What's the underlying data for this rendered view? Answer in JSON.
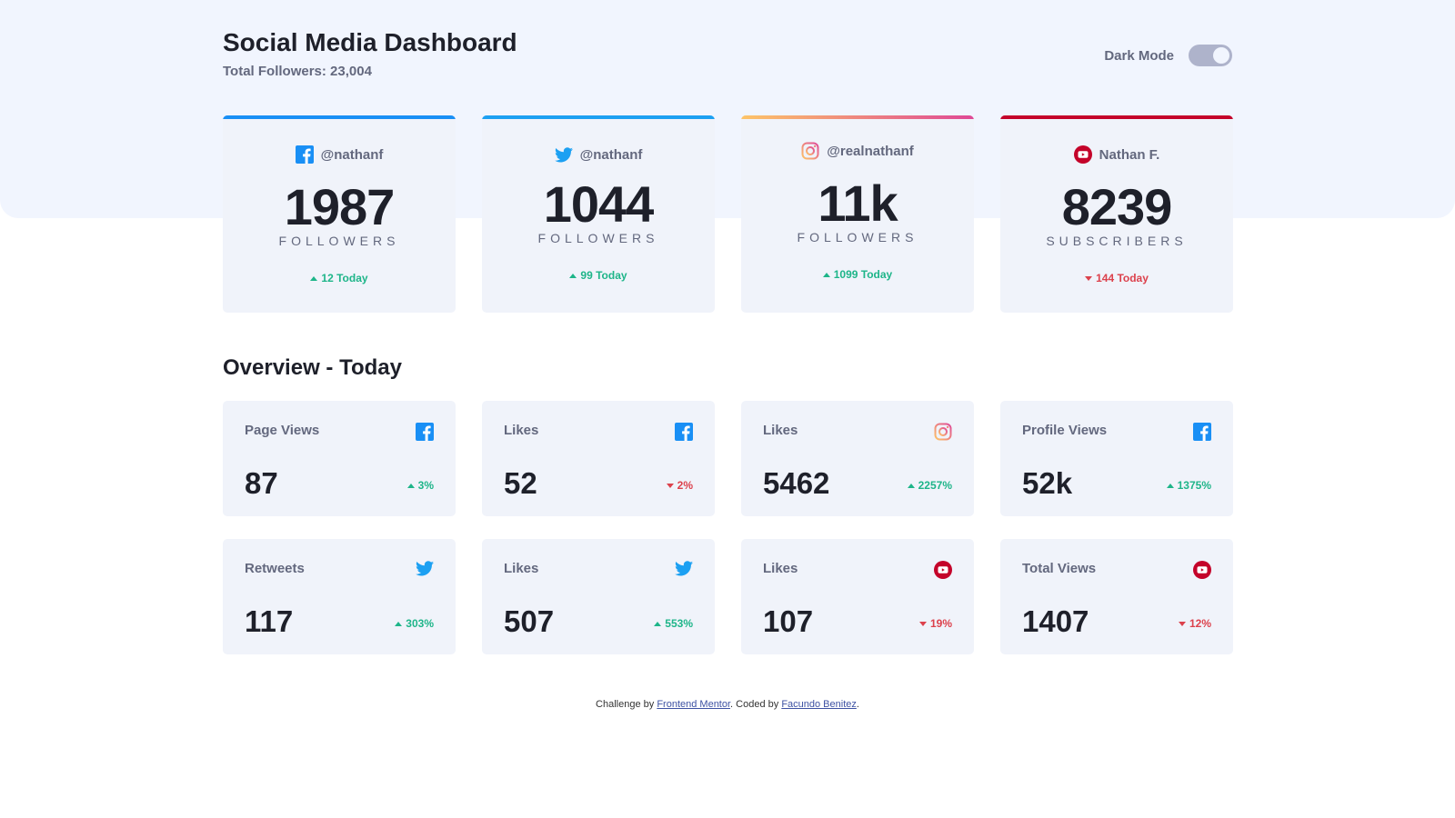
{
  "header": {
    "title": "Social Media Dashboard",
    "total_followers": "Total Followers: 23,004",
    "dark_mode_label": "Dark Mode"
  },
  "colors": {
    "facebook": "#198ff5",
    "twitter": "#1ca0f2",
    "instagram_start": "#fdc468",
    "instagram_end": "#df4996",
    "youtube": "#c4032a",
    "up": "#1eb589",
    "down": "#dc414c"
  },
  "cards": [
    {
      "network": "facebook",
      "icon": "facebook-icon",
      "handle": "@nathanf",
      "count": "1987",
      "unit": "FOLLOWERS",
      "today": "12 Today",
      "trend": "up"
    },
    {
      "network": "twitter",
      "icon": "twitter-icon",
      "handle": "@nathanf",
      "count": "1044",
      "unit": "FOLLOWERS",
      "today": "99 Today",
      "trend": "up"
    },
    {
      "network": "instagram",
      "icon": "instagram-icon",
      "handle": "@realnathanf",
      "count": "11k",
      "unit": "FOLLOWERS",
      "today": "1099 Today",
      "trend": "up"
    },
    {
      "network": "youtube",
      "icon": "youtube-icon",
      "handle": "Nathan F.",
      "count": "8239",
      "unit": "SUBSCRIBERS",
      "today": "144 Today",
      "trend": "down"
    }
  ],
  "overview": {
    "title": "Overview - Today",
    "items": [
      {
        "label": "Page Views",
        "icon": "facebook-icon",
        "value": "87",
        "pct": "3%",
        "trend": "up"
      },
      {
        "label": "Likes",
        "icon": "facebook-icon",
        "value": "52",
        "pct": "2%",
        "trend": "down"
      },
      {
        "label": "Likes",
        "icon": "instagram-icon",
        "value": "5462",
        "pct": "2257%",
        "trend": "up"
      },
      {
        "label": "Profile Views",
        "icon": "facebook-icon",
        "value": "52k",
        "pct": "1375%",
        "trend": "up"
      },
      {
        "label": "Retweets",
        "icon": "twitter-icon",
        "value": "117",
        "pct": "303%",
        "trend": "up"
      },
      {
        "label": "Likes",
        "icon": "twitter-icon",
        "value": "507",
        "pct": "553%",
        "trend": "up"
      },
      {
        "label": "Likes",
        "icon": "youtube-icon",
        "value": "107",
        "pct": "19%",
        "trend": "down"
      },
      {
        "label": "Total Views",
        "icon": "youtube-icon",
        "value": "1407",
        "pct": "12%",
        "trend": "down"
      }
    ]
  },
  "footer": {
    "prefix": "Challenge by ",
    "link1": "Frontend Mentor",
    "middle": ". Coded by ",
    "link2": "Facundo Benitez",
    "suffix": "."
  }
}
